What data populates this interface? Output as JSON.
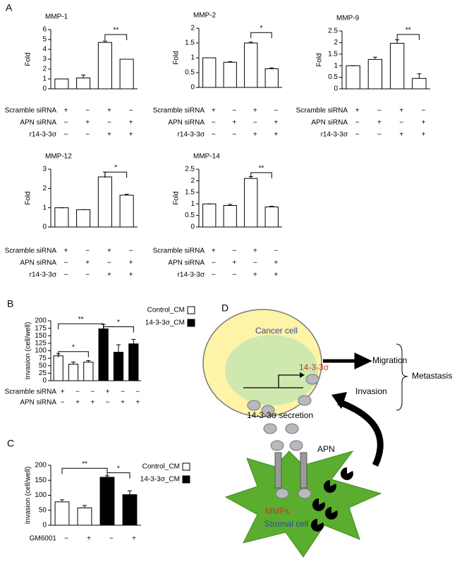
{
  "panel_labels": [
    "A",
    "B",
    "C",
    "D"
  ],
  "chart_data": [
    {
      "type": "bar",
      "title": "MMP-1",
      "y_label": "Fold",
      "color": "#ffffff",
      "values": [
        1,
        1.1,
        4.7,
        3.0
      ],
      "errors": [
        0,
        0.3,
        0.15,
        0
      ],
      "ylim": [
        0,
        6
      ],
      "yticks": [
        0,
        1,
        2,
        3,
        4,
        5,
        6
      ],
      "significance": [
        "**"
      ],
      "conditions": [
        {
          "label": "Scramble siRNA",
          "signs": [
            "+",
            "−",
            "+",
            "−"
          ]
        },
        {
          "label": "APN siRNA",
          "signs": [
            "−",
            "+",
            "−",
            "+"
          ]
        },
        {
          "label": "r14-3-3σ",
          "signs": [
            "−",
            "−",
            "+",
            "+"
          ]
        }
      ]
    },
    {
      "type": "bar",
      "title": "MMP-2",
      "y_label": "Fold",
      "color": "#ffffff",
      "values": [
        1,
        0.85,
        1.5,
        0.63
      ],
      "errors": [
        0,
        0.02,
        0.03,
        0.03
      ],
      "ylim": [
        0,
        2
      ],
      "yticks": [
        0,
        0.5,
        1,
        1.5,
        2
      ],
      "significance": [
        "*"
      ],
      "conditions": [
        {
          "label": "Scramble siRNA",
          "signs": [
            "+",
            "−",
            "+",
            "−"
          ]
        },
        {
          "label": "APN siRNA",
          "signs": [
            "−",
            "+",
            "−",
            "+"
          ]
        },
        {
          "label": "r14-3-3σ",
          "signs": [
            "−",
            "−",
            "+",
            "+"
          ]
        }
      ]
    },
    {
      "type": "bar",
      "title": "MMP-9",
      "y_label": "Fold",
      "color": "#ffffff",
      "values": [
        1,
        1.27,
        1.97,
        0.45
      ],
      "errors": [
        0,
        0.1,
        0.15,
        0.2
      ],
      "ylim": [
        0,
        2.5
      ],
      "yticks": [
        0,
        0.5,
        1,
        1.5,
        2,
        2.5
      ],
      "significance": [
        "**"
      ],
      "conditions": [
        {
          "label": "Scramble siRNA",
          "signs": [
            "+",
            "−",
            "+",
            "−"
          ]
        },
        {
          "label": "APN siRNA",
          "signs": [
            "−",
            "+",
            "−",
            "+"
          ]
        },
        {
          "label": "r14-3-3σ",
          "signs": [
            "−",
            "−",
            "+",
            "+"
          ]
        }
      ]
    },
    {
      "type": "bar",
      "title": "MMP-12",
      "y_label": "Fold",
      "color": "#ffffff",
      "values": [
        1,
        0.9,
        2.6,
        1.65
      ],
      "errors": [
        0,
        0,
        0.25,
        0.05
      ],
      "ylim": [
        0,
        3
      ],
      "yticks": [
        0,
        1,
        2,
        3
      ],
      "significance": [
        "*"
      ],
      "conditions": [
        {
          "label": "Scramble siRNA",
          "signs": [
            "+",
            "−",
            "+",
            "−"
          ]
        },
        {
          "label": "APN siRNA",
          "signs": [
            "−",
            "+",
            "−",
            "+"
          ]
        },
        {
          "label": "r14-3-3σ",
          "signs": [
            "−",
            "−",
            "+",
            "+"
          ]
        }
      ]
    },
    {
      "type": "bar",
      "title": "MMP-14",
      "y_label": "Fold",
      "color": "#ffffff",
      "values": [
        1,
        0.93,
        2.1,
        0.87
      ],
      "errors": [
        0,
        0.05,
        0.08,
        0.03
      ],
      "ylim": [
        0,
        2.5
      ],
      "yticks": [
        0,
        0.5,
        1,
        1.5,
        2,
        2.5
      ],
      "significance": [
        "**"
      ],
      "conditions": [
        {
          "label": "Scramble siRNA",
          "signs": [
            "+",
            "−",
            "+",
            "−"
          ]
        },
        {
          "label": "APN siRNA",
          "signs": [
            "−",
            "+",
            "−",
            "+"
          ]
        },
        {
          "label": "r14-3-3σ",
          "signs": [
            "−",
            "−",
            "+",
            "+"
          ]
        }
      ]
    },
    {
      "type": "bar",
      "y_label": "Invasion (cell/well)",
      "ylim": [
        0,
        200
      ],
      "yticks": [
        0,
        25,
        50,
        75,
        100,
        125,
        150,
        175,
        200
      ],
      "significance": [
        "**",
        "*",
        "*"
      ],
      "series": [
        {
          "name": "Control_CM",
          "color": "#ffffff",
          "values": [
            83,
            55,
            62,
            null,
            null,
            null
          ],
          "errors": [
            7,
            7,
            5,
            null,
            null,
            null
          ]
        },
        {
          "name": "14-3-3σ_CM",
          "color": "#000000",
          "values": [
            null,
            null,
            null,
            173,
            95,
            123
          ],
          "errors": [
            null,
            null,
            null,
            15,
            25,
            15
          ]
        }
      ],
      "conditions": [
        {
          "label": "Scramble siRNA",
          "signs": [
            "+",
            "−",
            "−",
            "+",
            "−",
            "−"
          ]
        },
        {
          "label": "APN siRNA",
          "signs": [
            "−",
            "+",
            "+",
            "−",
            "+",
            "+"
          ]
        }
      ]
    },
    {
      "type": "bar",
      "y_label": "Invasion (cell/well)",
      "ylim": [
        0,
        200
      ],
      "yticks": [
        0,
        50,
        100,
        150,
        200
      ],
      "significance": [
        "**",
        "*"
      ],
      "series": [
        {
          "name": "Control_CM",
          "color": "#ffffff",
          "values": [
            78,
            58,
            null,
            null
          ],
          "errors": [
            7,
            8,
            null,
            null
          ]
        },
        {
          "name": "14-3-3σ_CM",
          "color": "#000000",
          "values": [
            null,
            null,
            160,
            102
          ],
          "errors": [
            null,
            null,
            5,
            13
          ]
        }
      ],
      "conditions": [
        {
          "label": "GM6001",
          "signs": [
            "−",
            "+",
            "−",
            "+"
          ]
        }
      ]
    }
  ],
  "diagram": {
    "cancer_cell": "Cancer cell",
    "gene": "14-3-3σ",
    "migration": "Migration",
    "invasion": "Invasion",
    "metastasis": "Metastasis",
    "secretion": "14-3-3σ secretion",
    "apn": "APN",
    "mmps": "MMPs",
    "stromal_cell": "Stromal cell"
  }
}
